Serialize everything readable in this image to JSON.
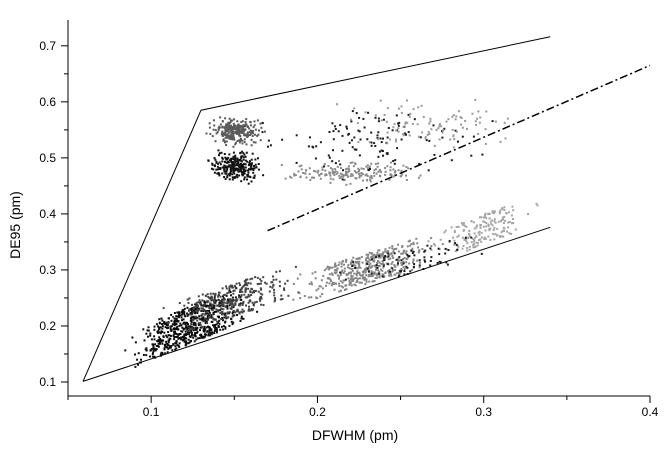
{
  "chart_data": {
    "type": "scatter",
    "xlabel": "DFWHM (pm)",
    "ylabel": "DE95 (pm)",
    "xlim": [
      0.05,
      0.4
    ],
    "ylim": [
      0.075,
      0.73
    ],
    "x_ticks": [
      "0.1",
      "0.2",
      "0.3",
      "0.4"
    ],
    "x_tick_values": [
      0.1,
      0.2,
      0.3,
      0.4
    ],
    "y_ticks": [
      "0.1",
      "0.2",
      "0.3",
      "0.4",
      "0.5",
      "0.6",
      "0.7"
    ],
    "y_tick_values": [
      0.1,
      0.2,
      0.3,
      0.4,
      0.5,
      0.6,
      0.7
    ],
    "grid": false,
    "envelope": {
      "upper": [
        [
          0.059,
          0.101
        ],
        [
          0.13,
          0.585
        ],
        [
          0.34,
          0.716
        ]
      ],
      "lower": [
        [
          0.059,
          0.101
        ],
        [
          0.34,
          0.376
        ]
      ]
    },
    "diagonal_line": {
      "style": "dash-dot",
      "x": [
        0.17,
        0.4
      ],
      "y": [
        0.37,
        0.665
      ]
    },
    "clusters": [
      {
        "group": "upper-dark-gray-cluster",
        "color": "#5a5a5a",
        "x_range": [
          0.13,
          0.17
        ],
        "y_range": [
          0.52,
          0.58
        ],
        "count": 260
      },
      {
        "group": "upper-black-cluster",
        "color": "#111111",
        "x_range": [
          0.13,
          0.17
        ],
        "y_range": [
          0.45,
          0.52
        ],
        "count": 260
      },
      {
        "group": "upper-gray-trail",
        "color": "#8a8a8a",
        "x_range": [
          0.17,
          0.27
        ],
        "y_range": [
          0.45,
          0.5
        ],
        "count": 180
      },
      {
        "group": "upper-scatter-black",
        "color": "#1a1a1a",
        "x_range": [
          0.14,
          0.32
        ],
        "y_range": [
          0.45,
          0.62
        ],
        "count": 120
      },
      {
        "group": "upper-scatter-gray",
        "color": "#999999",
        "x_range": [
          0.2,
          0.34
        ],
        "y_range": [
          0.5,
          0.62
        ],
        "count": 100
      },
      {
        "group": "lower-black-band",
        "color": "#0d0d0d",
        "x_range": [
          0.08,
          0.17
        ],
        "y_range": [
          0.15,
          0.3
        ],
        "count": 650
      },
      {
        "group": "lower-dark-gray-band",
        "color": "#444444",
        "x_range": [
          0.1,
          0.2
        ],
        "y_range": [
          0.2,
          0.33
        ],
        "count": 300
      },
      {
        "group": "lower-gray-band",
        "color": "#858585",
        "x_range": [
          0.18,
          0.28
        ],
        "y_range": [
          0.26,
          0.38
        ],
        "count": 420
      },
      {
        "group": "lower-light-gray-band",
        "color": "#a5a5a5",
        "x_range": [
          0.26,
          0.34
        ],
        "y_range": [
          0.33,
          0.45
        ],
        "count": 180
      },
      {
        "group": "lower-scatter-black",
        "color": "#1a1a1a",
        "x_range": [
          0.2,
          0.31
        ],
        "y_range": [
          0.28,
          0.38
        ],
        "count": 80
      }
    ]
  }
}
